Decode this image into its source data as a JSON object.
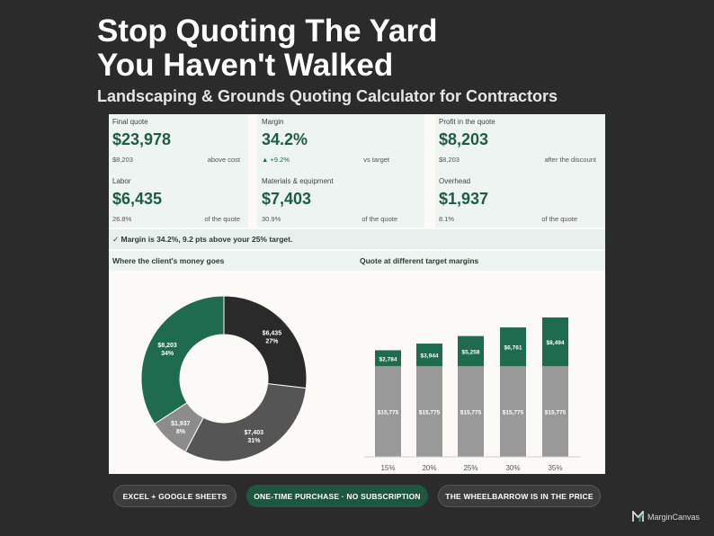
{
  "header": {
    "headline_line1": "Stop Quoting The Yard",
    "headline_line2": "You Haven't Walked",
    "subtitle": "Landscaping & Grounds Quoting Calculator for Contractors"
  },
  "metrics": [
    {
      "label": "Final quote",
      "value": "$23,978",
      "sub_left": "$8,203",
      "sub_right": "above cost"
    },
    {
      "label": "Margin",
      "value": "34.2%",
      "sub_left": "▲ +9.2%",
      "sub_right": "vs target"
    },
    {
      "label": "Profit in the quote",
      "value": "$8,203",
      "sub_left": "$8,203",
      "sub_right": "after the discount"
    },
    {
      "label": "Labor",
      "value": "$6,435",
      "sub_left": "26.8%",
      "sub_right": "of the quote"
    },
    {
      "label": "Materials & equipment",
      "value": "$7,403",
      "sub_left": "30.9%",
      "sub_right": "of the quote"
    },
    {
      "label": "Overhead",
      "value": "$1,937",
      "sub_left": "8.1%",
      "sub_right": "of the quote"
    }
  ],
  "banner": "✓  Margin is 34.2%, 9.2 pts above your 25% target.",
  "chart_headers": {
    "left": "Where the client's money goes",
    "right": "Quote at different target margins"
  },
  "chart_data": [
    {
      "type": "pie",
      "title": "Where the client's money goes",
      "slices": [
        {
          "label": "$6,435",
          "pct": "27%",
          "value": 6435,
          "color": "#2a2a2a"
        },
        {
          "label": "$7,403",
          "pct": "31%",
          "value": 7403,
          "color": "#555555"
        },
        {
          "label": "$1,937",
          "pct": "8%",
          "value": 1937,
          "color": "#8c8c8c"
        },
        {
          "label": "$8,203",
          "pct": "34%",
          "value": 8203,
          "color": "#1e6b4d"
        }
      ]
    },
    {
      "type": "bar",
      "stacked": true,
      "title": "Quote at different target margins",
      "categories": [
        "15%",
        "20%",
        "25%",
        "30%",
        "35%"
      ],
      "series": [
        {
          "values": [
            15775,
            15775,
            15775,
            15775,
            15775
          ],
          "labels": [
            "$15,775",
            "$15,775",
            "$15,775",
            "$15,775",
            "$15,775"
          ],
          "color": "#999999"
        },
        {
          "values": [
            2784,
            3944,
            5258,
            6761,
            8494
          ],
          "labels": [
            "$2,784",
            "$3,944",
            "$5,258",
            "$6,761",
            "$8,494"
          ],
          "color": "#1e6b4d"
        }
      ]
    }
  ],
  "pills": [
    "EXCEL + GOOGLE SHEETS",
    "ONE-TIME PURCHASE · NO SUBSCRIPTION",
    "THE WHEELBARROW IS IN THE PRICE"
  ],
  "brand": {
    "name": "MarginCanvas",
    "logo_icon": "margin-canvas-logo-icon"
  }
}
